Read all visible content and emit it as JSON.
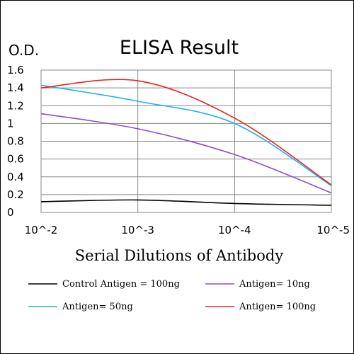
{
  "chart_data": {
    "type": "line",
    "title": "ELISA Result",
    "ylabel": "O.D.",
    "xlabel": "Serial Dilutions of Antibody",
    "x_scale": "log",
    "x_ticks": [
      0.01,
      0.001,
      0.0001,
      1e-05
    ],
    "x_tick_labels": [
      "10^-2",
      "10^-3",
      "10^-4",
      "10^-5"
    ],
    "ylim": [
      0,
      1.6
    ],
    "y_ticks": [
      0,
      0.2,
      0.4,
      0.6,
      0.8,
      1,
      1.2,
      1.4,
      1.6
    ],
    "y_tick_labels": [
      "0",
      "0.2",
      "0.4",
      "0.6",
      "0.8",
      "1",
      "1.2",
      "1.4",
      "1.6"
    ],
    "grid": true,
    "legend_position": "bottom",
    "series": [
      {
        "name": "Control Antigen = 100ng",
        "color": "#000000",
        "x": [
          0.01,
          0.001,
          0.0001,
          1e-05
        ],
        "values": [
          0.12,
          0.14,
          0.1,
          0.08
        ]
      },
      {
        "name": "Antigen= 10ng",
        "color": "#8B4FC8",
        "x": [
          0.01,
          0.001,
          0.0001,
          1e-05
        ],
        "values": [
          1.11,
          0.94,
          0.65,
          0.22
        ]
      },
      {
        "name": "Antigen= 50ng",
        "color": "#1EB4E8",
        "x": [
          0.01,
          0.001,
          0.0001,
          1e-05
        ],
        "values": [
          1.43,
          1.25,
          1.0,
          0.3
        ]
      },
      {
        "name": "Antigen= 100ng",
        "color": "#E8231E",
        "x": [
          0.01,
          0.001,
          0.0001,
          1e-05
        ],
        "values": [
          1.4,
          1.48,
          1.06,
          0.31
        ]
      }
    ]
  }
}
